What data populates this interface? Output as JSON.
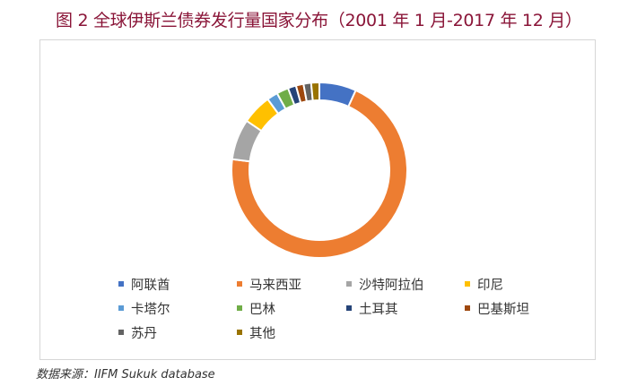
{
  "title": "图 2 全球伊斯兰债券发行量国家分布（2001 年 1 月-2017 年 12 月）",
  "source": "数据来源：IIFM Sukuk database",
  "chart_data": {
    "type": "pie",
    "variant": "donut",
    "title": "",
    "legend_position": "bottom",
    "categories": [
      "阿联酋",
      "马来西亚",
      "沙特阿拉伯",
      "印尼",
      "卡塔尔",
      "巴林",
      "土耳其",
      "巴基斯坦",
      "苏丹",
      "其他"
    ],
    "values": [
      6.8,
      70.2,
      7.5,
      5.5,
      2.0,
      2.2,
      1.5,
      1.4,
      1.4,
      1.5
    ],
    "colors": [
      "#4472c4",
      "#ed7d31",
      "#a5a5a5",
      "#ffc000",
      "#5b9bd5",
      "#70ad47",
      "#264478",
      "#9e480e",
      "#636363",
      "#997300"
    ]
  }
}
